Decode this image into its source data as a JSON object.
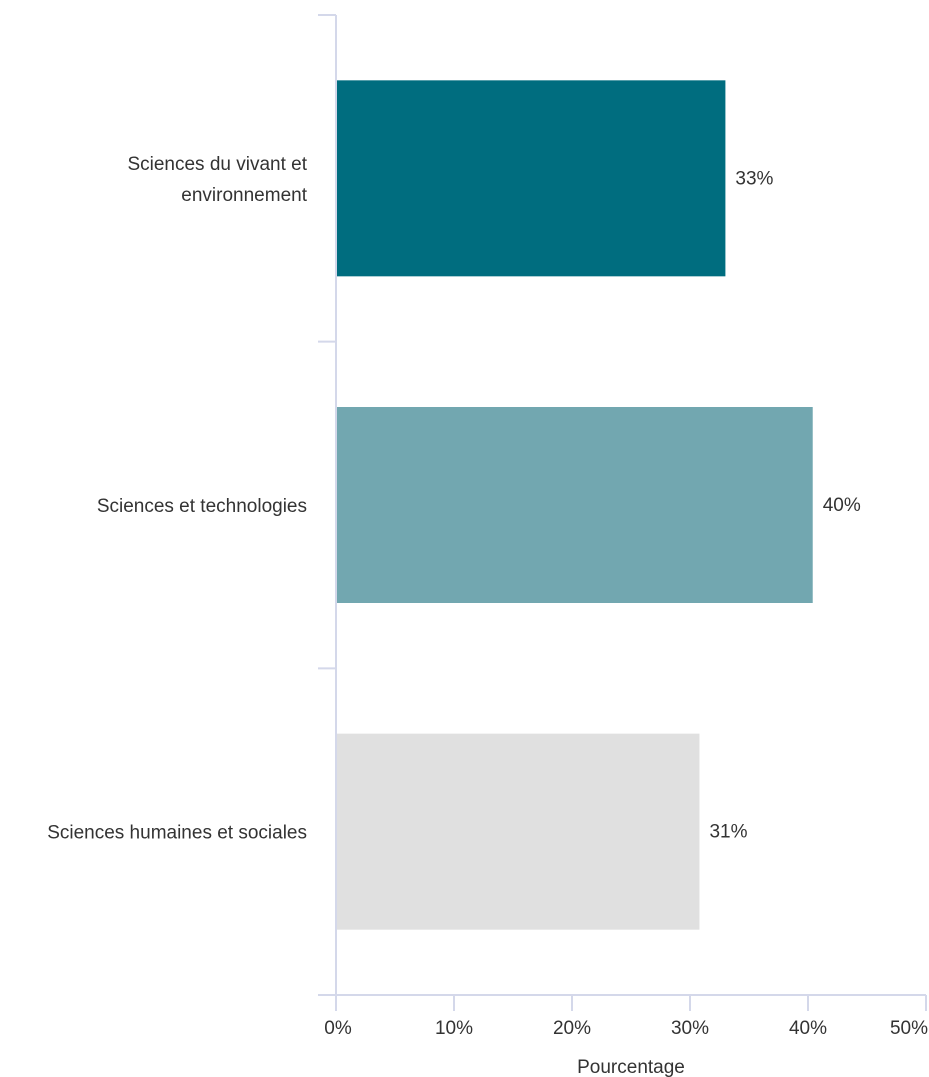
{
  "chart_data": {
    "type": "bar",
    "orientation": "horizontal",
    "categories": [
      [
        "Sciences du vivant et",
        "environnement"
      ],
      [
        "Sciences et technologies"
      ],
      [
        "Sciences humaines et sociales"
      ]
    ],
    "values": [
      33,
      40.4,
      30.8
    ],
    "data_labels": [
      "33%",
      "40%",
      "31%"
    ],
    "colors": [
      "#006d7f",
      "#72a7b0",
      "#e0e0e0"
    ],
    "xlabel": "Pourcentage",
    "ylabel": "",
    "title": "",
    "xlim": [
      0,
      50
    ],
    "x_ticks": [
      0,
      10,
      20,
      30,
      40,
      50
    ],
    "x_tick_labels": [
      "0%",
      "10%",
      "20%",
      "30%",
      "40%",
      "50%"
    ],
    "grid": false,
    "legend": "none"
  }
}
